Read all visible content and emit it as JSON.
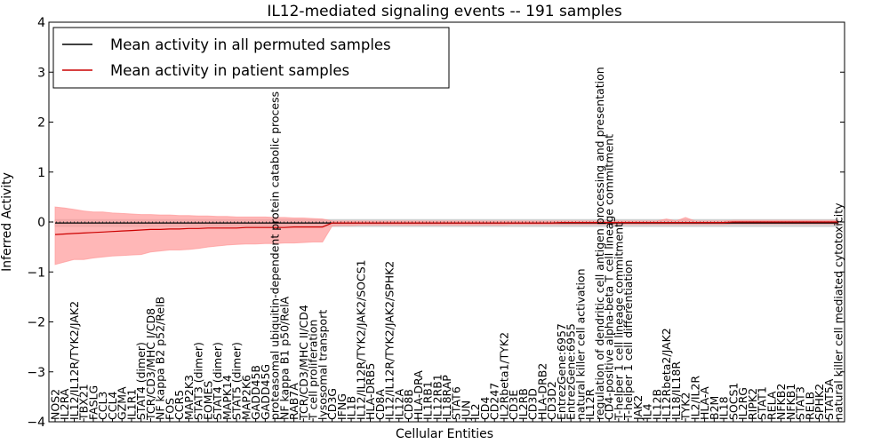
{
  "chart_data": {
    "type": "line",
    "title": "IL12-mediated signaling events -- 191 samples",
    "xlabel": "Cellular Entities",
    "ylabel": "Inferred Activity",
    "ylim": [
      -4,
      4
    ],
    "yticks": [
      -4,
      -3,
      -2,
      -1,
      0,
      1,
      2,
      3,
      4
    ],
    "grid": false,
    "legend_position": "top-left",
    "colors": {
      "patient": "#cc0000",
      "band": "#ff9999",
      "permuted": "#000000",
      "permuted_band": "#bbbbbb",
      "zero_line": "#555555"
    },
    "categories": [
      "NOS2",
      "IL2RA",
      "IL12/IL12R/TYK2/JAK2",
      "TBX21",
      "FASLG",
      "CCL3",
      "CCL4",
      "GZMA",
      "IL1R1",
      "STAT4 (dimer)",
      "TCR/CD3/MHC I/CD8",
      "NF kappa B2 p52/RelB",
      "FOS",
      "CCR5",
      "MAP2K3",
      "STAT3 (dimer)",
      "EOMES",
      "STAT4 (dimer)",
      "MAPK14",
      "STAT5 (dimer)",
      "MAP2K6",
      "GADD45B",
      "GADD45G",
      "proteasomal ubiquitin-dependent protein catabolic process",
      "NF kappa B1 p50/RelA",
      "RAB7A",
      "TCR/CD3/MHC II/CD4",
      "T cell proliferation",
      "lysosomal transport",
      "CD3G",
      "IFNG",
      "IL1B",
      "IL12/IL12R/TYK2/JAK2/SOCS1",
      "HLA-DRB5",
      "CD8A",
      "IL12/IL12R/TYK2/JAK2/SPHK2",
      "IL12A",
      "CD8B",
      "HLA-DRA",
      "IL1RB1",
      "IL12RB1",
      "IL18RAP",
      "STAT6",
      "JUN",
      "IL2",
      "CD4",
      "CD247",
      "IL2Rbeta1/TYK2",
      "CD3E",
      "IL2RB",
      "CD3D",
      "HLA-DRB2",
      "CD3D2",
      "EntrezGene:6957",
      "EntrezGene:6955",
      "natural killer cell activation",
      "IL12R",
      "regulation of dendritic cell antigen processing and presentation",
      "CD4-positive alpha-beta T cell lineage commitment",
      "T-helper 1 cell lineage commitment",
      "T-helper 1 cell differentiation",
      "JAK2",
      "IL4",
      "IL12B",
      "IL12Rbeta2/JAK2",
      "IL18/IL18R",
      "TYK2",
      "IL2/IL2R",
      "HLA-A",
      "B2M",
      "IL18",
      "SOCS1",
      "IL2RG",
      "RIPK2",
      "STAT1",
      "RELA",
      "NFKB2",
      "NFKB1",
      "STAT3",
      "RELB",
      "SPHK2",
      "STAT5A",
      "natural killer cell mediated cytotoxicity"
    ],
    "series": [
      {
        "name": "Mean activity in all permuted samples",
        "values": [
          -0.02,
          -0.02,
          -0.02,
          -0.02,
          -0.02,
          -0.02,
          -0.02,
          -0.02,
          -0.02,
          -0.02,
          -0.02,
          -0.02,
          -0.02,
          -0.02,
          -0.02,
          -0.02,
          -0.02,
          -0.02,
          -0.02,
          -0.02,
          -0.02,
          -0.02,
          -0.02,
          -0.02,
          -0.02,
          -0.02,
          -0.02,
          -0.02,
          -0.02,
          -0.02,
          -0.02,
          -0.02,
          -0.02,
          -0.02,
          -0.02,
          -0.02,
          -0.02,
          -0.02,
          -0.02,
          -0.02,
          -0.02,
          -0.02,
          -0.02,
          -0.02,
          -0.02,
          -0.02,
          -0.02,
          -0.02,
          -0.02,
          -0.02,
          -0.02,
          -0.02,
          -0.02,
          -0.02,
          -0.02,
          -0.02,
          -0.02,
          -0.02,
          -0.02,
          -0.02,
          -0.02,
          -0.02,
          -0.02,
          -0.02,
          -0.02,
          -0.02,
          -0.02,
          -0.02,
          -0.02,
          -0.02,
          -0.02,
          -0.02,
          -0.02,
          -0.02,
          -0.02,
          -0.02,
          -0.02,
          -0.02,
          -0.02,
          -0.02,
          -0.02,
          -0.02,
          -0.02
        ],
        "lower": [
          -0.09,
          -0.09,
          -0.09,
          -0.09,
          -0.09,
          -0.09,
          -0.09,
          -0.09,
          -0.09,
          -0.09,
          -0.09,
          -0.09,
          -0.09,
          -0.09,
          -0.09,
          -0.09,
          -0.09,
          -0.09,
          -0.09,
          -0.09,
          -0.09,
          -0.09,
          -0.09,
          -0.09,
          -0.09,
          -0.09,
          -0.09,
          -0.09,
          -0.09,
          -0.09,
          -0.09,
          -0.09,
          -0.09,
          -0.09,
          -0.09,
          -0.09,
          -0.09,
          -0.09,
          -0.09,
          -0.09,
          -0.09,
          -0.09,
          -0.09,
          -0.09,
          -0.09,
          -0.09,
          -0.09,
          -0.09,
          -0.09,
          -0.09,
          -0.09,
          -0.09,
          -0.09,
          -0.09,
          -0.09,
          -0.09,
          -0.09,
          -0.09,
          -0.09,
          -0.09,
          -0.09,
          -0.09,
          -0.09,
          -0.09,
          -0.09,
          -0.09,
          -0.09,
          -0.09,
          -0.09,
          -0.09,
          -0.09,
          -0.09,
          -0.09,
          -0.09,
          -0.09,
          -0.09,
          -0.09,
          -0.09,
          -0.09,
          -0.09,
          -0.09,
          -0.09,
          -0.09
        ],
        "upper": [
          0.05,
          0.05,
          0.05,
          0.05,
          0.05,
          0.05,
          0.05,
          0.05,
          0.05,
          0.05,
          0.05,
          0.05,
          0.05,
          0.05,
          0.05,
          0.05,
          0.05,
          0.05,
          0.05,
          0.05,
          0.05,
          0.05,
          0.05,
          0.05,
          0.05,
          0.05,
          0.05,
          0.05,
          0.05,
          0.05,
          0.05,
          0.05,
          0.05,
          0.05,
          0.05,
          0.05,
          0.05,
          0.05,
          0.05,
          0.05,
          0.05,
          0.05,
          0.05,
          0.05,
          0.05,
          0.05,
          0.05,
          0.05,
          0.05,
          0.05,
          0.05,
          0.05,
          0.05,
          0.05,
          0.05,
          0.05,
          0.05,
          0.05,
          0.05,
          0.05,
          0.05,
          0.05,
          0.05,
          0.05,
          0.05,
          0.05,
          0.05,
          0.05,
          0.05,
          0.05,
          0.05,
          0.05,
          0.05,
          0.05,
          0.05,
          0.05,
          0.05,
          0.05,
          0.05,
          0.05,
          0.05,
          0.05,
          0.05
        ]
      },
      {
        "name": "Mean activity in patient samples",
        "values": [
          -0.25,
          -0.24,
          -0.23,
          -0.22,
          -0.21,
          -0.2,
          -0.19,
          -0.18,
          -0.17,
          -0.16,
          -0.15,
          -0.15,
          -0.14,
          -0.14,
          -0.13,
          -0.13,
          -0.12,
          -0.12,
          -0.12,
          -0.12,
          -0.11,
          -0.11,
          -0.11,
          -0.11,
          -0.11,
          -0.1,
          -0.1,
          -0.1,
          -0.1,
          -0.02,
          -0.02,
          -0.02,
          -0.02,
          -0.02,
          -0.02,
          -0.02,
          -0.02,
          -0.02,
          -0.02,
          -0.02,
          -0.02,
          -0.02,
          -0.02,
          -0.02,
          -0.02,
          -0.02,
          -0.02,
          -0.02,
          -0.02,
          -0.02,
          -0.02,
          -0.02,
          -0.02,
          -0.01,
          -0.01,
          -0.01,
          -0.01,
          -0.01,
          -0.01,
          -0.01,
          -0.01,
          -0.01,
          -0.01,
          -0.01,
          -0.01,
          -0.01,
          -0.01,
          -0.01,
          -0.01,
          -0.01,
          -0.01,
          0.0,
          0.0,
          0.0,
          0.0,
          0.0,
          0.0,
          0.0,
          0.0,
          0.0,
          0.0,
          0.0,
          0.0
        ],
        "lower": [
          -0.85,
          -0.8,
          -0.75,
          -0.75,
          -0.72,
          -0.7,
          -0.68,
          -0.67,
          -0.66,
          -0.65,
          -0.6,
          -0.58,
          -0.56,
          -0.56,
          -0.55,
          -0.53,
          -0.5,
          -0.48,
          -0.46,
          -0.45,
          -0.44,
          -0.44,
          -0.43,
          -0.43,
          -0.42,
          -0.42,
          -0.41,
          -0.4,
          -0.4,
          -0.08,
          -0.07,
          -0.07,
          -0.06,
          -0.06,
          -0.06,
          -0.06,
          -0.06,
          -0.06,
          -0.06,
          -0.06,
          -0.06,
          -0.06,
          -0.06,
          -0.06,
          -0.06,
          -0.06,
          -0.06,
          -0.06,
          -0.05,
          -0.05,
          -0.05,
          -0.05,
          -0.05,
          -0.05,
          -0.05,
          -0.05,
          -0.05,
          -0.05,
          -0.05,
          -0.05,
          -0.05,
          -0.05,
          -0.05,
          -0.05,
          -0.05,
          -0.05,
          -0.05,
          -0.05,
          -0.05,
          -0.05,
          -0.05,
          -0.04,
          -0.04,
          -0.04,
          -0.04,
          -0.04,
          -0.04,
          -0.04,
          -0.04,
          -0.04,
          -0.04,
          -0.04,
          -0.04
        ],
        "upper": [
          0.3,
          0.28,
          0.25,
          0.22,
          0.2,
          0.2,
          0.18,
          0.17,
          0.16,
          0.15,
          0.15,
          0.14,
          0.14,
          0.13,
          0.13,
          0.12,
          0.12,
          0.11,
          0.11,
          0.1,
          0.1,
          0.1,
          0.1,
          0.09,
          0.09,
          0.08,
          0.08,
          0.07,
          0.06,
          0.02,
          0.02,
          0.02,
          0.02,
          0.02,
          0.02,
          0.02,
          0.02,
          0.02,
          0.02,
          0.02,
          0.02,
          0.02,
          0.02,
          0.02,
          0.02,
          0.02,
          0.02,
          0.02,
          0.02,
          0.02,
          0.02,
          0.02,
          0.02,
          0.02,
          0.02,
          0.02,
          0.02,
          0.02,
          0.02,
          0.02,
          0.02,
          0.02,
          0.02,
          0.02,
          0.06,
          0.02,
          0.09,
          0.02,
          0.02,
          0.02,
          0.02,
          0.03,
          0.03,
          0.03,
          0.03,
          0.03,
          0.03,
          0.03,
          0.03,
          0.03,
          0.03,
          0.03,
          0.03
        ]
      }
    ]
  }
}
